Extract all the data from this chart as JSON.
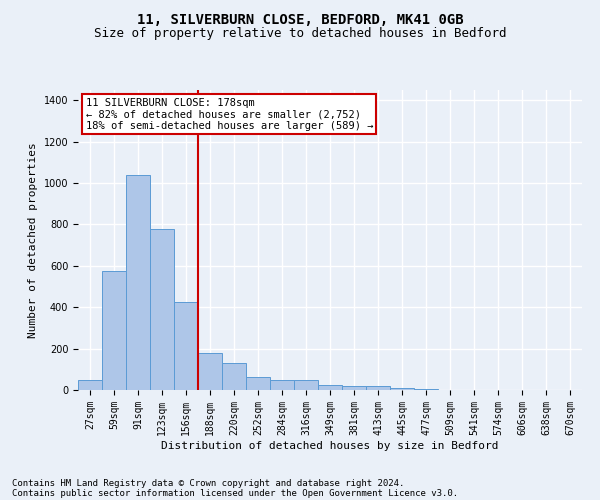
{
  "title_line1": "11, SILVERBURN CLOSE, BEDFORD, MK41 0GB",
  "title_line2": "Size of property relative to detached houses in Bedford",
  "xlabel": "Distribution of detached houses by size in Bedford",
  "ylabel": "Number of detached properties",
  "categories": [
    "27sqm",
    "59sqm",
    "91sqm",
    "123sqm",
    "156sqm",
    "188sqm",
    "220sqm",
    "252sqm",
    "284sqm",
    "316sqm",
    "349sqm",
    "381sqm",
    "413sqm",
    "445sqm",
    "477sqm",
    "509sqm",
    "541sqm",
    "574sqm",
    "606sqm",
    "638sqm",
    "670sqm"
  ],
  "values": [
    47,
    575,
    1040,
    780,
    425,
    180,
    130,
    65,
    50,
    50,
    25,
    20,
    20,
    12,
    5,
    0,
    0,
    0,
    0,
    0,
    0
  ],
  "bar_color": "#aec6e8",
  "bar_edge_color": "#5b9bd5",
  "vline_index": 5,
  "annotation_line1": "11 SILVERBURN CLOSE: 178sqm",
  "annotation_line2": "← 82% of detached houses are smaller (2,752)",
  "annotation_line3": "18% of semi-detached houses are larger (589) →",
  "vline_color": "#cc0000",
  "annotation_box_edge_color": "#cc0000",
  "ylim": [
    0,
    1450
  ],
  "yticks": [
    0,
    200,
    400,
    600,
    800,
    1000,
    1200,
    1400
  ],
  "footnote1": "Contains HM Land Registry data © Crown copyright and database right 2024.",
  "footnote2": "Contains public sector information licensed under the Open Government Licence v3.0.",
  "bg_color": "#eaf0f8",
  "grid_color": "#ffffff",
  "title_fontsize": 10,
  "subtitle_fontsize": 9,
  "axis_label_fontsize": 8,
  "tick_fontsize": 7,
  "annotation_fontsize": 7.5,
  "footnote_fontsize": 6.5
}
